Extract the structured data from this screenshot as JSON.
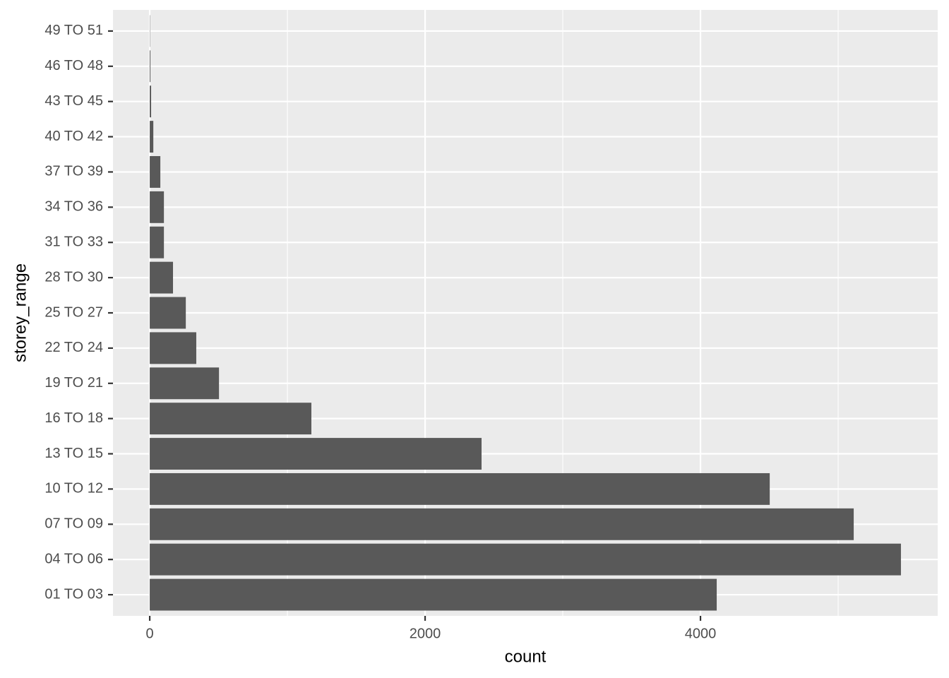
{
  "chart_data": {
    "type": "barh",
    "x_label": "count",
    "y_label": "storey_range",
    "categories": [
      "01 TO 03",
      "04 TO 06",
      "07 TO 09",
      "10 TO 12",
      "13 TO 15",
      "16 TO 18",
      "19 TO 21",
      "22 TO 24",
      "25 TO 27",
      "28 TO 30",
      "31 TO 33",
      "34 TO 36",
      "37 TO 39",
      "40 TO 42",
      "43 TO 45",
      "46 TO 48",
      "49 TO 51"
    ],
    "values": [
      4118,
      5456,
      5113,
      4503,
      2410,
      1174,
      503,
      338,
      262,
      169,
      103,
      103,
      77,
      26,
      10,
      5,
      2
    ],
    "color": "#595959",
    "xlim": [
      -267,
      5723
    ],
    "xticks": [
      0,
      2000,
      4000
    ],
    "x_minor_ticks": [
      1000,
      3000,
      5000
    ],
    "grid": true,
    "panel_color": "#ebebeb"
  }
}
